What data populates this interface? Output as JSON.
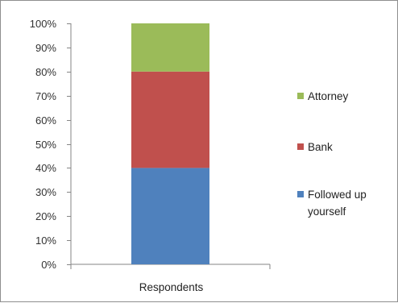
{
  "chart_data": {
    "type": "bar",
    "stacked": "percent",
    "categories": [
      "Respondents"
    ],
    "series": [
      {
        "name": "Followed up yourself",
        "name_lines": [
          "Followed up",
          "yourself"
        ],
        "values": [
          40
        ],
        "color": "#4f81bd"
      },
      {
        "name": "Bank",
        "name_lines": [
          "Bank"
        ],
        "values": [
          40
        ],
        "color": "#c0504d"
      },
      {
        "name": "Attorney",
        "name_lines": [
          "Attorney"
        ],
        "values": [
          20
        ],
        "color": "#9bbb59"
      }
    ],
    "y_ticks": [
      "0%",
      "10%",
      "20%",
      "30%",
      "40%",
      "50%",
      "60%",
      "70%",
      "80%",
      "90%",
      "100%"
    ],
    "ylim": [
      0,
      100
    ],
    "grid": false,
    "legend_position": "right",
    "title": "",
    "xlabel": "",
    "ylabel": ""
  }
}
